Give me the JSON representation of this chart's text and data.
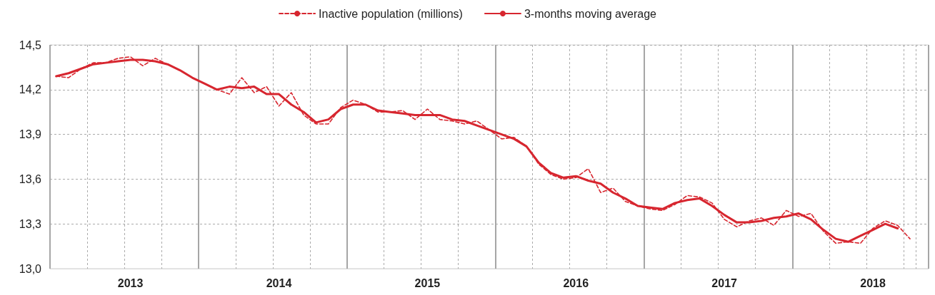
{
  "chart_data": {
    "type": "line",
    "categories": [
      null,
      null,
      null,
      null,
      null,
      null,
      "2013",
      null,
      null,
      null,
      null,
      null,
      null,
      null,
      null,
      null,
      null,
      null,
      "2014",
      null,
      null,
      null,
      null,
      null,
      null,
      null,
      null,
      null,
      null,
      null,
      "2015",
      null,
      null,
      null,
      null,
      null,
      null,
      null,
      null,
      null,
      null,
      null,
      "2016",
      null,
      null,
      null,
      null,
      null,
      null,
      null,
      null,
      null,
      null,
      null,
      "2017",
      null,
      null,
      null,
      null,
      null,
      null,
      null,
      null,
      null,
      null,
      null,
      "2018",
      null,
      null,
      null,
      null
    ],
    "series": [
      {
        "name": "Inactive population (millions)",
        "color": "#d7262f",
        "line_style": "dashed",
        "values": [
          14.29,
          14.28,
          14.34,
          14.38,
          14.38,
          14.41,
          14.42,
          14.36,
          14.41,
          14.37,
          14.33,
          14.28,
          14.24,
          14.2,
          14.17,
          14.28,
          14.18,
          14.22,
          14.09,
          14.18,
          14.03,
          13.97,
          13.97,
          14.08,
          14.13,
          14.1,
          14.05,
          14.05,
          14.06,
          14.0,
          14.07,
          14.0,
          13.99,
          13.97,
          13.99,
          13.93,
          13.87,
          13.88,
          13.82,
          13.7,
          13.63,
          13.6,
          13.61,
          13.67,
          13.51,
          13.54,
          13.45,
          13.42,
          13.4,
          13.39,
          13.43,
          13.49,
          13.48,
          13.44,
          13.33,
          13.28,
          13.32,
          13.34,
          13.29,
          13.39,
          13.35,
          13.37,
          13.25,
          13.17,
          13.18,
          13.17,
          13.27,
          13.32,
          13.29,
          13.2,
          null
        ]
      },
      {
        "name": "3-months moving average",
        "color": "#d7262f",
        "line_style": "solid",
        "values": [
          14.29,
          14.31,
          14.34,
          14.37,
          14.38,
          14.39,
          14.4,
          14.4,
          14.39,
          14.37,
          14.33,
          14.28,
          14.24,
          14.2,
          14.22,
          14.21,
          14.22,
          14.17,
          14.17,
          14.1,
          14.05,
          13.98,
          14.0,
          14.07,
          14.1,
          14.1,
          14.06,
          14.05,
          14.04,
          14.03,
          14.03,
          14.03,
          14.0,
          13.99,
          13.96,
          13.93,
          13.9,
          13.87,
          13.82,
          13.71,
          13.64,
          13.61,
          13.62,
          13.59,
          13.57,
          13.51,
          13.47,
          13.42,
          13.41,
          13.4,
          13.44,
          13.46,
          13.47,
          13.42,
          13.36,
          13.31,
          13.31,
          13.32,
          13.34,
          13.35,
          13.37,
          13.33,
          13.26,
          13.2,
          13.18,
          13.22,
          13.26,
          13.3,
          13.27,
          null,
          null
        ]
      }
    ],
    "ylim": [
      13.0,
      14.5
    ],
    "yticks": [
      {
        "value": 13.0,
        "label": "13,0"
      },
      {
        "value": 13.3,
        "label": "13,3"
      },
      {
        "value": 13.6,
        "label": "13,6"
      },
      {
        "value": 13.9,
        "label": "13,9"
      },
      {
        "value": 14.2,
        "label": "14,2"
      },
      {
        "value": 14.5,
        "label": "14,5"
      }
    ],
    "grid": true,
    "legend": "top",
    "marker": "none"
  }
}
